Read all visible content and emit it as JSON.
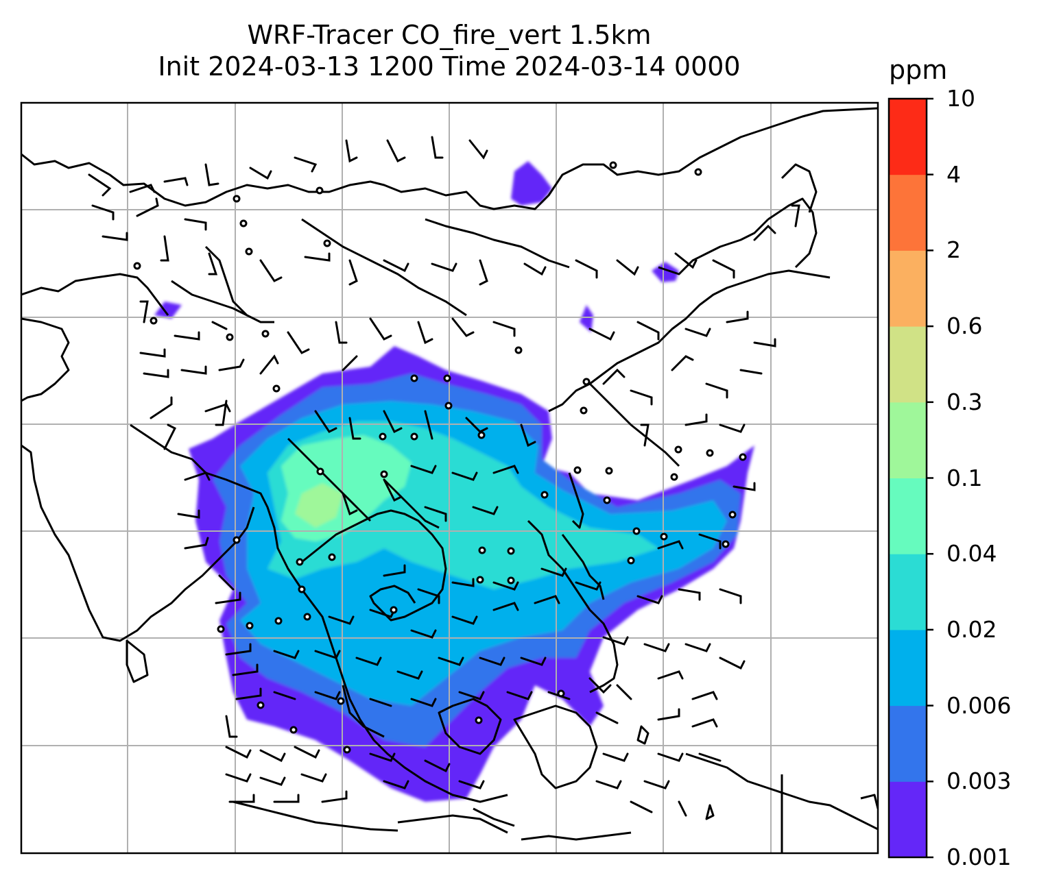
{
  "title": {
    "line1": "WRF-Tracer CO_fire_vert 1.5km",
    "line2": "Init 2024-03-13 1200 Time 2024-03-14 0000"
  },
  "colorbar": {
    "unit": "ppm",
    "tick_labels": [
      "0.001",
      "0.003",
      "0.006",
      "0.02",
      "0.04",
      "0.1",
      "0.3",
      "0.6",
      "2",
      "4",
      "10"
    ],
    "colors": [
      "#6427f8",
      "#3375ec",
      "#00b0ec",
      "#2bdcd4",
      "#66fbbe",
      "#9ff79a",
      "#d0e286",
      "#fbb060",
      "#fd7439",
      "#fd2b17"
    ]
  },
  "map": {
    "content": "CO fire tracer concentration over Southeast Asia with wind barbs",
    "gridlines": true,
    "coastlines": true
  }
}
